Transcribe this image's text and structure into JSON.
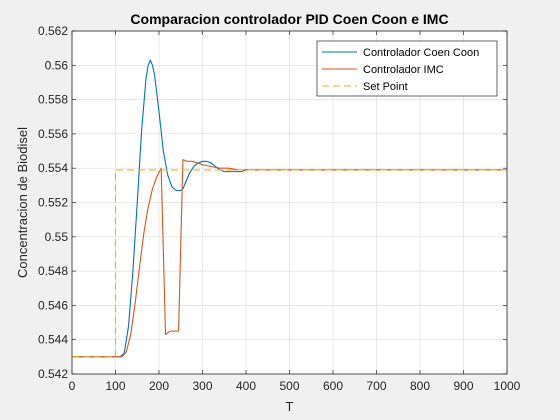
{
  "chart_data": {
    "type": "line",
    "title": "Comparacion controlador PID Coen Coon e IMC",
    "xlabel": "T",
    "ylabel": "Concentracion de Biodisel",
    "xlim": [
      0,
      1000
    ],
    "ylim": [
      0.542,
      0.562
    ],
    "xticks": [
      0,
      100,
      200,
      300,
      400,
      500,
      600,
      700,
      800,
      900,
      1000
    ],
    "xtick_labels": [
      "0",
      "100",
      "200",
      "300",
      "400",
      "500",
      "600",
      "700",
      "800",
      "900",
      "1000"
    ],
    "yticks": [
      0.542,
      0.544,
      0.546,
      0.548,
      0.55,
      0.552,
      0.554,
      0.556,
      0.558,
      0.56,
      0.562
    ],
    "ytick_labels": [
      "0.542",
      "0.544",
      "0.546",
      "0.548",
      "0.55",
      "0.552",
      "0.554",
      "0.556",
      "0.558",
      "0.56",
      "0.562"
    ],
    "grid": true,
    "legend_position": "top-right",
    "series": [
      {
        "name": "Controlador Coen Coon",
        "color": "#0072BD",
        "style": "solid",
        "x": [
          0,
          100,
          110,
          120,
          130,
          140,
          150,
          160,
          170,
          175,
          180,
          185,
          190,
          200,
          210,
          220,
          230,
          240,
          250,
          255,
          260,
          270,
          280,
          290,
          300,
          310,
          320,
          330,
          340,
          350,
          360,
          370,
          380,
          390,
          400,
          420,
          450,
          500,
          550,
          600,
          700,
          800,
          900,
          1000
        ],
        "y": [
          0.543,
          0.543,
          0.543,
          0.5432,
          0.5448,
          0.548,
          0.552,
          0.5562,
          0.5592,
          0.56,
          0.5603,
          0.56,
          0.5594,
          0.5573,
          0.555,
          0.5536,
          0.5529,
          0.5527,
          0.5527,
          0.5528,
          0.5531,
          0.5537,
          0.5541,
          0.5543,
          0.5544,
          0.5544,
          0.5543,
          0.5541,
          0.5539,
          0.5538,
          0.5538,
          0.5538,
          0.5538,
          0.5538,
          0.5539,
          0.5539,
          0.5539,
          0.5539,
          0.5539,
          0.5539,
          0.5539,
          0.5539,
          0.5539,
          0.5539
        ]
      },
      {
        "name": "Controlador IMC",
        "color": "#D95319",
        "style": "solid",
        "x": [
          0,
          100,
          115,
          125,
          135,
          145,
          155,
          165,
          175,
          185,
          195,
          205,
          215,
          225,
          235,
          245,
          255,
          265,
          275,
          290,
          300,
          320,
          340,
          360,
          380,
          400,
          450,
          500,
          600,
          700,
          800,
          900,
          1000
        ],
        "y": [
          0.543,
          0.543,
          0.543,
          0.5433,
          0.5443,
          0.5461,
          0.5482,
          0.5502,
          0.5517,
          0.5528,
          0.5535,
          0.554,
          0.5443,
          0.5445,
          0.5445,
          0.5445,
          0.5545,
          0.5544,
          0.5544,
          0.5543,
          0.5542,
          0.5541,
          0.554,
          0.554,
          0.5539,
          0.5539,
          0.5539,
          0.5539,
          0.5539,
          0.5539,
          0.5539,
          0.5539,
          0.5539
        ]
      },
      {
        "name": "Set Point",
        "color": "#EDB120",
        "style": "dashed",
        "x": [
          0,
          100,
          100,
          1000
        ],
        "y": [
          0.543,
          0.543,
          0.5539,
          0.5539
        ]
      }
    ]
  }
}
